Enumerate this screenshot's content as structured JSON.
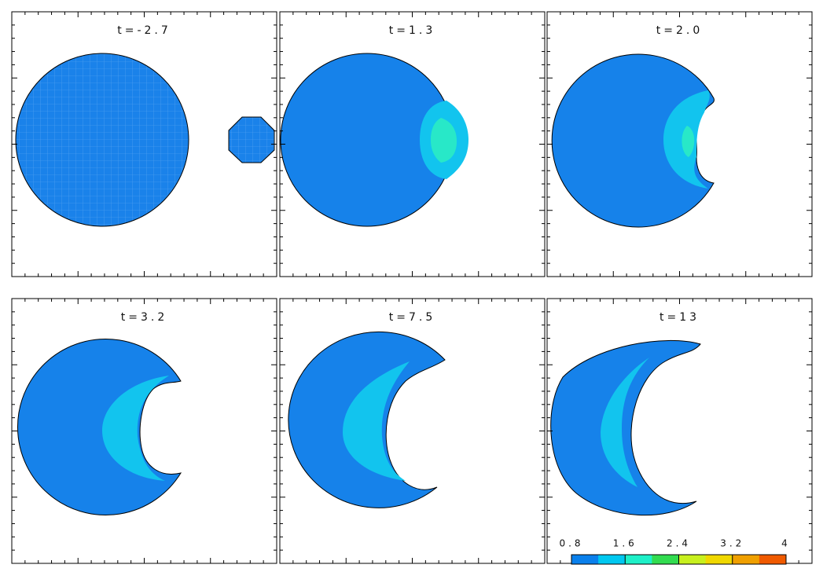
{
  "chart_data": {
    "type": "contour-panels",
    "panels": [
      {
        "title": "t=-2.7"
      },
      {
        "title": "t=1.3"
      },
      {
        "title": "t=2.0"
      },
      {
        "title": "t=3.2"
      },
      {
        "title": "t=7.5"
      },
      {
        "title": "t=13"
      }
    ],
    "colorbar": {
      "lim": [
        0.8,
        4
      ],
      "ticks": [
        0.8,
        1.6,
        2.4,
        3.2,
        4
      ],
      "colors": [
        "#0a80ec",
        "#00c8f0",
        "#1ef0c8",
        "#32dc50",
        "#c8f01e",
        "#f0d800",
        "#f0a000",
        "#f05a00"
      ]
    }
  }
}
